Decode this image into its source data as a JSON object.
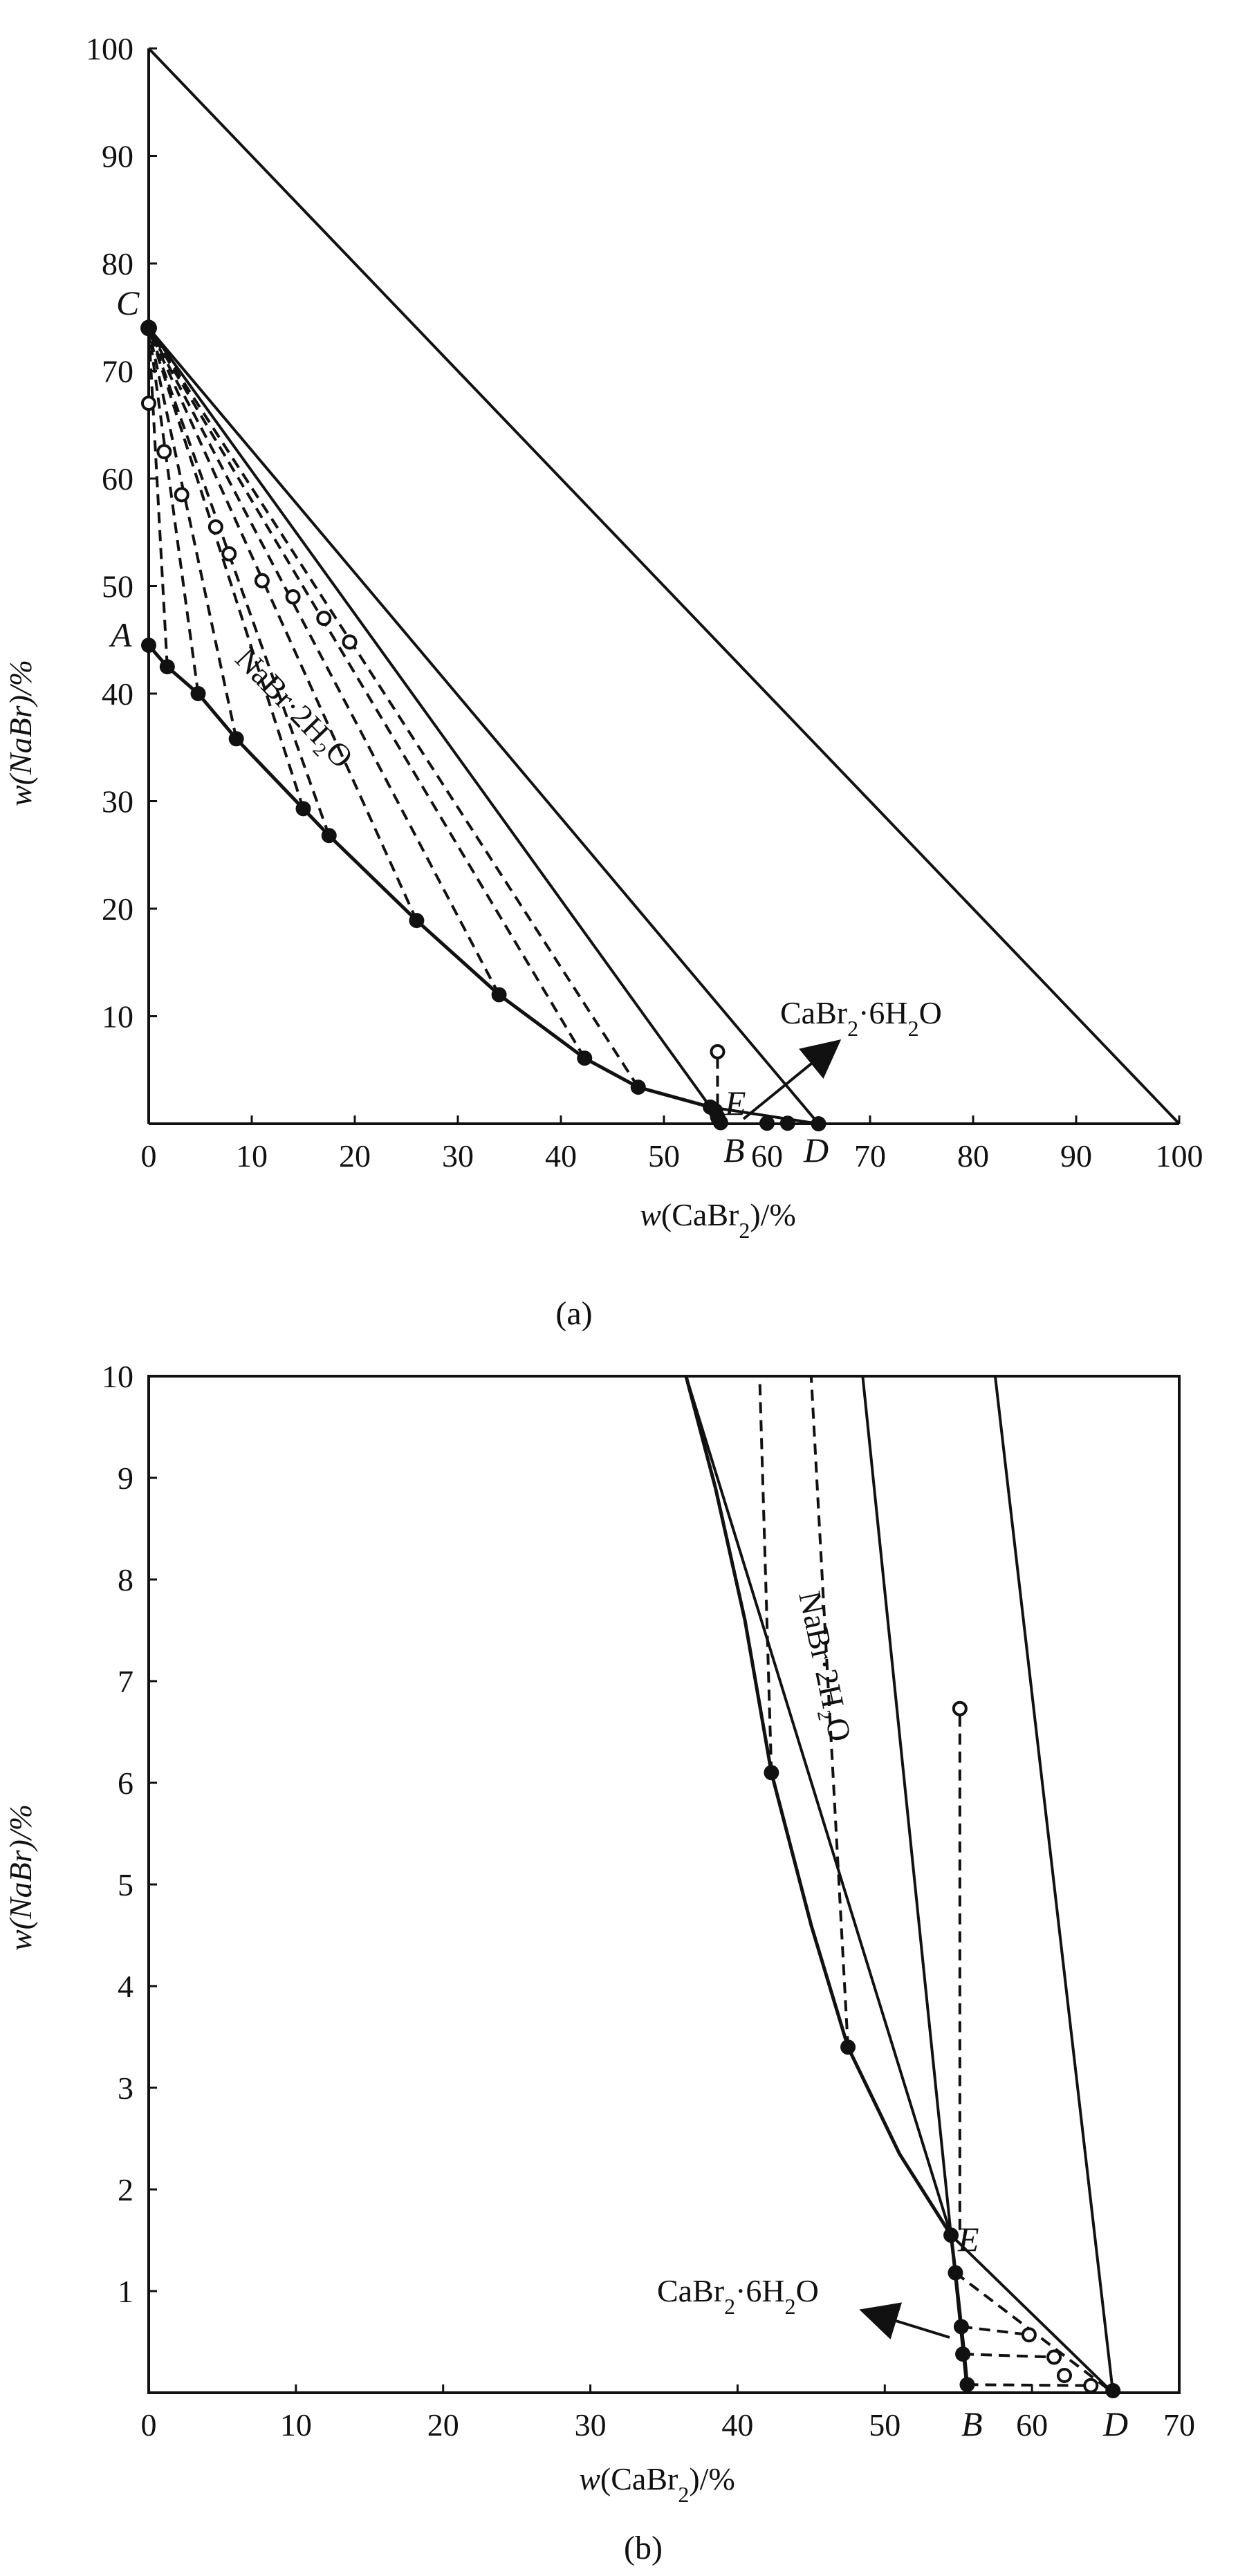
{
  "chart_data": [
    {
      "panel": "(a)",
      "type": "scatter",
      "xlabel_pre": "w(CaBr",
      "xlabel_sub": "2",
      "xlabel_post": ")/%",
      "ylabel": "w(NaBr)/%",
      "xlim": [
        0,
        100
      ],
      "ylim": [
        0,
        100
      ],
      "x_ticks": [
        "0",
        "10",
        "20",
        "30",
        "40",
        "50",
        "",
        "60",
        "",
        "70",
        "80",
        "90",
        "100"
      ],
      "x_tick_values": [
        0,
        10,
        20,
        30,
        40,
        50,
        null,
        60,
        null,
        70,
        80,
        90,
        100
      ],
      "y_ticks": [
        "10",
        "20",
        "30",
        "40",
        "50",
        "60",
        "70",
        "80",
        "90",
        "100"
      ],
      "y_tick_values": [
        10,
        20,
        30,
        40,
        50,
        60,
        70,
        80,
        90,
        100
      ],
      "labels": {
        "A": "A",
        "B": "B",
        "C": "C",
        "D": "D",
        "E": "E",
        "region": "NaBr·2H₂O",
        "salt_pre": "CaBr",
        "salt_sub1": "2",
        "salt_mid": "·6H",
        "salt_sub2": "2",
        "salt_post": "O"
      },
      "solubility_curve": [
        [
          0,
          44.5
        ],
        [
          1.8,
          42.5
        ],
        [
          4.8,
          40
        ],
        [
          8.5,
          35.8
        ],
        [
          15,
          29.3
        ],
        [
          17.5,
          26.8
        ],
        [
          26,
          18.9
        ],
        [
          34,
          12
        ],
        [
          42.3,
          6.1
        ],
        [
          47.5,
          3.4
        ],
        [
          54.5,
          1.55
        ],
        [
          55,
          1.2
        ],
        [
          55.2,
          0.65
        ],
        [
          55.3,
          0.4
        ],
        [
          55.5,
          0.1
        ]
      ],
      "liquid_points": [
        [
          0,
          44.5
        ],
        [
          1.8,
          42.5
        ],
        [
          4.8,
          40
        ],
        [
          8.5,
          35.8
        ],
        [
          15,
          29.3
        ],
        [
          17.5,
          26.8
        ],
        [
          26,
          18.9
        ],
        [
          34,
          12
        ],
        [
          42.3,
          6.1
        ],
        [
          47.5,
          3.4
        ],
        [
          54.5,
          1.55
        ],
        [
          55,
          1.2
        ],
        [
          55.2,
          0.65
        ],
        [
          55.3,
          0.4
        ],
        [
          55.5,
          0.1
        ],
        [
          60,
          0.05
        ],
        [
          62,
          0.05
        ],
        [
          65,
          0
        ]
      ],
      "wet_residue_points": [
        [
          0,
          67
        ],
        [
          1.5,
          62.5
        ],
        [
          3.2,
          58.5
        ],
        [
          6.5,
          55.5
        ],
        [
          7.8,
          53
        ],
        [
          11,
          50.5
        ],
        [
          14,
          49
        ],
        [
          17,
          47
        ],
        [
          19.5,
          44.8
        ],
        [
          55.2,
          6.7
        ]
      ],
      "tie_lines": [
        [
          [
            0,
            44.5
          ],
          [
            0,
            74
          ]
        ],
        [
          [
            1.8,
            42.5
          ],
          [
            0,
            74
          ]
        ],
        [
          [
            4.8,
            40
          ],
          [
            0,
            74
          ]
        ],
        [
          [
            8.5,
            35.8
          ],
          [
            0,
            74
          ]
        ],
        [
          [
            15,
            29.3
          ],
          [
            0,
            74
          ]
        ],
        [
          [
            17.5,
            26.8
          ],
          [
            0,
            74
          ]
        ],
        [
          [
            26,
            18.9
          ],
          [
            0,
            74
          ]
        ],
        [
          [
            34,
            12
          ],
          [
            0,
            74
          ]
        ],
        [
          [
            42.3,
            6.1
          ],
          [
            0,
            74
          ]
        ],
        [
          [
            47.5,
            3.4
          ],
          [
            0,
            74
          ]
        ],
        [
          [
            55.2,
            0.1
          ],
          [
            55.2,
            6.7
          ]
        ]
      ],
      "solid_lines": [
        [
          [
            54.5,
            1.55
          ],
          [
            0,
            74
          ]
        ],
        [
          [
            65,
            0
          ],
          [
            0,
            74
          ]
        ],
        [
          [
            54.5,
            1.55
          ],
          [
            65,
            0
          ]
        ],
        [
          [
            0,
            100
          ],
          [
            100,
            0
          ]
        ]
      ],
      "special_points": {
        "A": [
          0,
          44.5
        ],
        "B": [
          55.5,
          0
        ],
        "C": [
          0,
          74
        ],
        "D": [
          65,
          0
        ],
        "E": [
          54.5,
          1.55
        ]
      }
    },
    {
      "panel": "(b)",
      "type": "scatter",
      "xlabel_pre": "w(CaBr",
      "xlabel_sub": "2",
      "xlabel_post": ")/%",
      "ylabel": "w(NaBr)/%",
      "xlim": [
        0,
        70
      ],
      "ylim": [
        0,
        10
      ],
      "x_ticks": [
        "0",
        "10",
        "20",
        "30",
        "40",
        "50",
        "",
        "60",
        "",
        "70"
      ],
      "x_tick_values": [
        0,
        10,
        20,
        30,
        40,
        50,
        null,
        60,
        null,
        70
      ],
      "y_ticks": [
        "1",
        "2",
        "3",
        "4",
        "5",
        "6",
        "7",
        "8",
        "9",
        "10"
      ],
      "y_tick_values": [
        1,
        2,
        3,
        4,
        5,
        6,
        7,
        8,
        9,
        10
      ],
      "labels": {
        "B": "B",
        "D": "D",
        "E": "E",
        "region": "NaBr·2H₂O",
        "salt_pre": "CaBr",
        "salt_sub1": "2",
        "salt_mid": "·6H",
        "salt_sub2": "2",
        "salt_post": "O"
      },
      "solubility_curve": [
        [
          36.5,
          10
        ],
        [
          38.5,
          8.9
        ],
        [
          40.5,
          7.6
        ],
        [
          42.3,
          6.1
        ],
        [
          45,
          4.6
        ],
        [
          47.5,
          3.4
        ],
        [
          51,
          2.35
        ],
        [
          54.5,
          1.55
        ],
        [
          54.8,
          1.18
        ],
        [
          55.2,
          0.65
        ],
        [
          55.4,
          0.38
        ],
        [
          55.6,
          0.08
        ]
      ],
      "liquid_points": [
        [
          42.3,
          6.1
        ],
        [
          47.5,
          3.4
        ],
        [
          54.5,
          1.55
        ],
        [
          54.8,
          1.18
        ],
        [
          55.2,
          0.65
        ],
        [
          55.3,
          0.38
        ],
        [
          55.6,
          0.08
        ],
        [
          65.5,
          0.02
        ]
      ],
      "wet_residue_points": [
        [
          55.1,
          6.73
        ],
        [
          59.8,
          0.57
        ],
        [
          61.5,
          0.35
        ],
        [
          62.2,
          0.17
        ],
        [
          64,
          0.07
        ]
      ],
      "tie_lines": [
        [
          [
            42.3,
            6.1
          ],
          [
            41.5,
            10
          ]
        ],
        [
          [
            47.5,
            3.4
          ],
          [
            45,
            10
          ]
        ],
        [
          [
            55.2,
            0.65
          ],
          [
            59.8,
            0.57
          ]
        ],
        [
          [
            55.3,
            0.38
          ],
          [
            61.5,
            0.35
          ]
        ],
        [
          [
            55.6,
            0.08
          ],
          [
            64,
            0.07
          ]
        ],
        [
          [
            54.8,
            1.18
          ],
          [
            65.5,
            0
          ]
        ],
        [
          [
            55.1,
            1.6
          ],
          [
            55.1,
            6.73
          ]
        ]
      ],
      "solid_lines": [
        [
          [
            54.5,
            1.55
          ],
          [
            65.5,
            0
          ]
        ],
        [
          [
            55.6,
            0.0
          ],
          [
            54.5,
            1.55
          ]
        ],
        [
          [
            48.5,
            10
          ],
          [
            54.5,
            1.55
          ]
        ],
        [
          [
            57.5,
            10
          ],
          [
            65.5,
            0
          ]
        ],
        [
          [
            36.5,
            10
          ],
          [
            54.5,
            1.55
          ]
        ]
      ],
      "special_points": {
        "B": [
          56,
          0
        ],
        "D": [
          65.5,
          0
        ],
        "E": [
          54.5,
          1.55
        ]
      }
    }
  ],
  "captions": {
    "a": "(a)",
    "b": "(b)"
  }
}
